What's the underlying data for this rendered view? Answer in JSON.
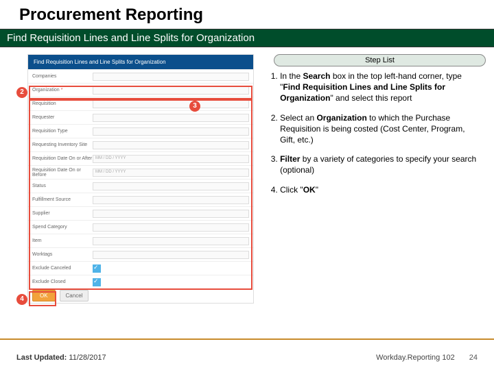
{
  "title": "Procurement Reporting",
  "subtitle": "Find Requisition Lines and Line Splits for Organization",
  "step_list_label": "Step List",
  "shot": {
    "header": "Find Requisition Lines and Line Splits for Organization",
    "rows": [
      {
        "label": "Companies",
        "field": ""
      },
      {
        "label": "Organization",
        "field": "",
        "required": true
      },
      {
        "label": "Requisition",
        "field": ""
      },
      {
        "label": "Requester",
        "field": ""
      },
      {
        "label": "Requisition Type",
        "field": ""
      },
      {
        "label": "Requesting Inventory Site",
        "field": ""
      },
      {
        "label": "Requisition Date On or After",
        "field": "MM / DD / YYYY"
      },
      {
        "label": "Requisition Date On or Before",
        "field": "MM / DD / YYYY"
      },
      {
        "label": "Status",
        "field": ""
      },
      {
        "label": "Fulfillment Source",
        "field": ""
      },
      {
        "label": "Supplier",
        "field": ""
      },
      {
        "label": "Spend Category",
        "field": ""
      },
      {
        "label": "Item",
        "field": ""
      },
      {
        "label": "Worktags",
        "field": ""
      },
      {
        "label": "Exclude Canceled",
        "checkbox": true
      },
      {
        "label": "Exclude Closed",
        "checkbox": true
      }
    ],
    "ok_label": "OK",
    "cancel_label": "Cancel"
  },
  "callouts": {
    "c2": "2",
    "c3": "3",
    "c4": "4"
  },
  "steps": [
    {
      "n": "1.",
      "html_pre": "In the ",
      "b1": "Search",
      "mid1": " box in the top left-hand corner, type \"",
      "b2": "Find Requisition Lines and Line Splits for Organization",
      "mid2": "\" and select this report"
    },
    {
      "n": "2.",
      "html_pre": "Select an ",
      "b1": "Organization",
      "mid1": " to which the Purchase Requisition is being costed (Cost Center, Program, Gift, etc.)",
      "b2": "",
      "mid2": ""
    },
    {
      "n": "3.",
      "b1": "Filter",
      "mid1": " by a variety of categories to specify your search (optional)",
      "html_pre": "",
      "b2": "",
      "mid2": ""
    },
    {
      "n": "4.",
      "html_pre": "Click \"",
      "b1": "OK",
      "mid1": "\"",
      "b2": "",
      "mid2": ""
    }
  ],
  "footer": {
    "updated_label": "Last Updated:",
    "updated_value": "11/28/2017",
    "course": "Workday.Reporting 102",
    "page": "24"
  }
}
